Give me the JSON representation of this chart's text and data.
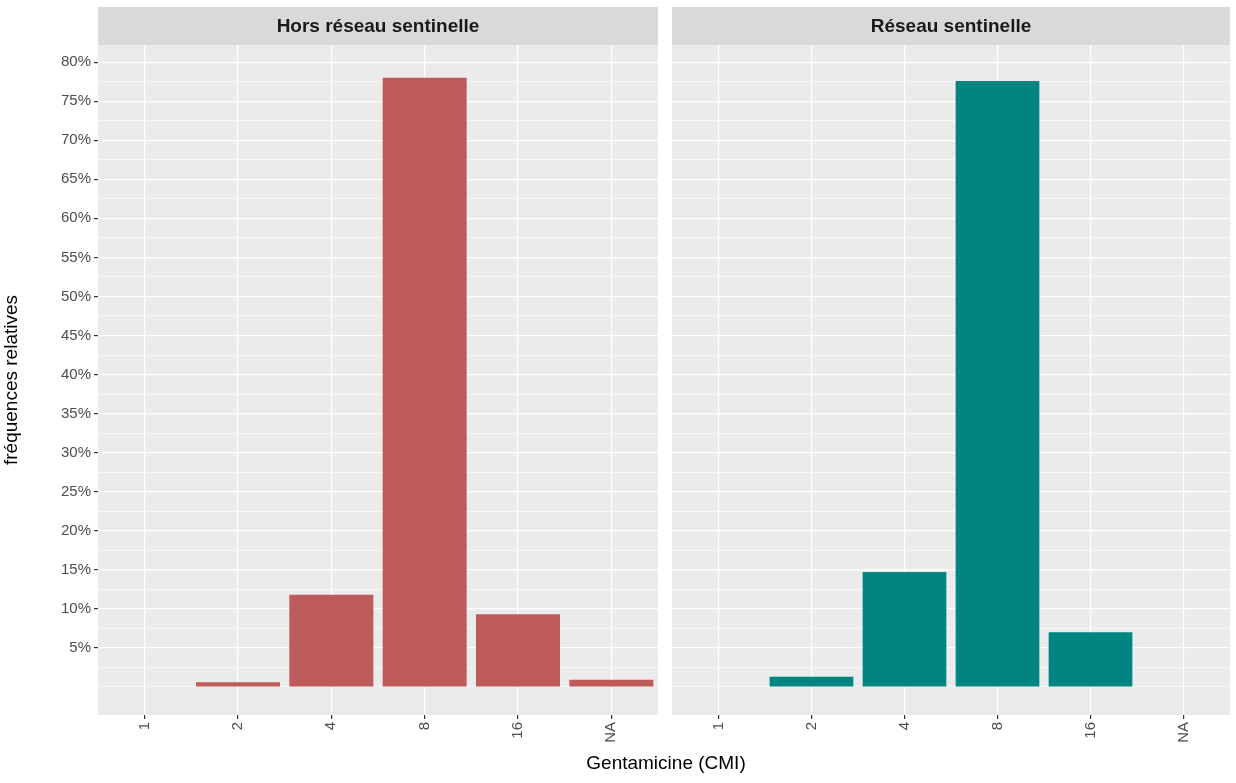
{
  "chart_data": [
    {
      "type": "bar",
      "title": "Hors réseau sentinelle",
      "xlabel": "Gentamicine (CMI)",
      "ylabel": "fréquences relatives",
      "categories": [
        "1",
        "2",
        "4",
        "8",
        "16",
        "NA"
      ],
      "values": [
        0,
        0.6,
        11.8,
        78.0,
        9.3,
        0.9
      ],
      "color": "#bd5a5a",
      "ylim": [
        -3.6,
        82.2
      ],
      "yticks": [
        {
          "value": 0,
          "label": null
        },
        {
          "value": 2.5,
          "label": null
        },
        {
          "value": 5,
          "label": "5%"
        },
        {
          "value": 7.5,
          "label": null
        },
        {
          "value": 10,
          "label": "10%"
        },
        {
          "value": 12.5,
          "label": null
        },
        {
          "value": 15,
          "label": "15%"
        },
        {
          "value": 17.5,
          "label": null
        },
        {
          "value": 20,
          "label": "20%"
        },
        {
          "value": 22.5,
          "label": null
        },
        {
          "value": 25,
          "label": "25%"
        },
        {
          "value": 27.5,
          "label": null
        },
        {
          "value": 30,
          "label": "30%"
        },
        {
          "value": 32.5,
          "label": null
        },
        {
          "value": 35,
          "label": "35%"
        },
        {
          "value": 37.5,
          "label": null
        },
        {
          "value": 40,
          "label": "40%"
        },
        {
          "value": 42.5,
          "label": null
        },
        {
          "value": 45,
          "label": "45%"
        },
        {
          "value": 47.5,
          "label": null
        },
        {
          "value": 50,
          "label": "50%"
        },
        {
          "value": 52.5,
          "label": null
        },
        {
          "value": 55,
          "label": "55%"
        },
        {
          "value": 57.5,
          "label": null
        },
        {
          "value": 60,
          "label": "60%"
        },
        {
          "value": 62.5,
          "label": null
        },
        {
          "value": 65,
          "label": "65%"
        },
        {
          "value": 67.5,
          "label": null
        },
        {
          "value": 70,
          "label": "70%"
        },
        {
          "value": 72.5,
          "label": null
        },
        {
          "value": 75,
          "label": "75%"
        },
        {
          "value": 77.5,
          "label": null
        },
        {
          "value": 80,
          "label": "80%"
        }
      ],
      "grid": true
    },
    {
      "type": "bar",
      "title": "Réseau sentinelle",
      "categories": [
        "1",
        "2",
        "4",
        "8",
        "16",
        "NA"
      ],
      "values": [
        0,
        1.3,
        14.7,
        77.6,
        7.0,
        0
      ],
      "color": "#008583",
      "ylim": [
        -3.6,
        82.2
      ],
      "yticks": [
        {
          "value": 0,
          "label": null
        },
        {
          "value": 2.5,
          "label": null
        },
        5,
        {
          "value": 7.5,
          "label": null
        },
        10,
        {
          "value": 12.5,
          "label": null
        },
        15,
        {
          "value": 17.5,
          "label": null
        },
        20,
        {
          "value": 22.5,
          "label": null
        },
        25,
        {
          "value": 27.5,
          "label": null
        },
        30,
        {
          "value": 32.5,
          "label": null
        },
        35,
        {
          "value": 37.5,
          "label": null
        },
        40,
        {
          "value": 42.5,
          "label": null
        },
        45,
        {
          "value": 47.5,
          "label": null
        },
        50,
        {
          "value": 52.5,
          "label": null
        },
        55,
        {
          "value": 57.5,
          "label": null
        },
        60,
        {
          "value": 62.5,
          "label": null
        },
        65,
        {
          "value": 67.5,
          "label": null
        },
        70,
        {
          "value": 72.5,
          "label": null
        },
        75,
        {
          "value": 77.5,
          "label": null
        },
        80
      ],
      "grid": true,
      "tick_labels": "x"
    }
  ]
}
